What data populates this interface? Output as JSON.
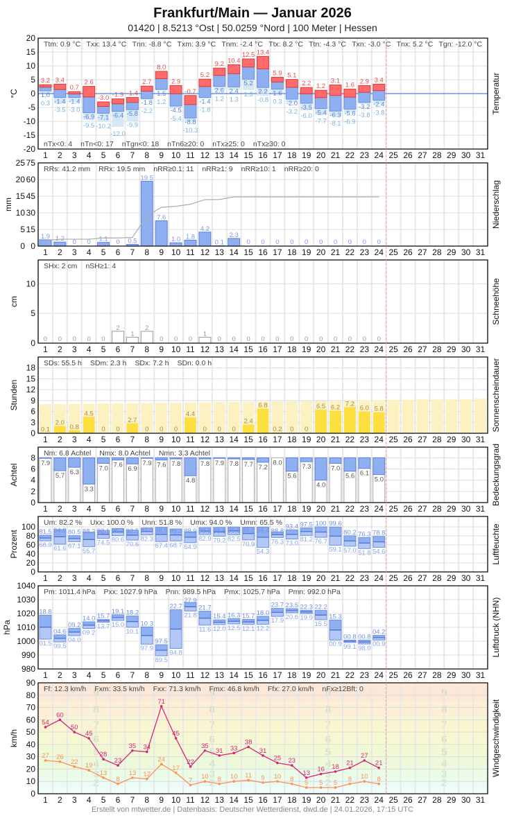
{
  "header": {
    "title": "Frankfurt/Main  —  Januar 2026",
    "subtitle": "01420  |  8.5213 °Ost  |  50.0259 °Nord  |  100 Meter  |  Hessen"
  },
  "footer": "Erstellt von mtwetter.de | Datenbasis: Deutscher Wetterdienst, dwd.de | 24.01.2026, 17:15 UTC",
  "colors": {
    "tmax": "#ff6b6b",
    "tmin": "#8fb0f0",
    "tground": "#d4e8f6",
    "precip": "#8fb0f0",
    "sun": "#fde040",
    "sun_possible": "#fcf1c0",
    "cloud": "#8fb0f0",
    "humidity": "#a8c0f4",
    "pressure": "#a8c0f4",
    "gust": "#d6247a",
    "wind_mean": "#ff9055",
    "today_line": "#f2a0a0"
  },
  "days": [
    "1",
    "2",
    "3",
    "4",
    "5",
    "6",
    "7",
    "8",
    "9",
    "10",
    "11",
    "12",
    "13",
    "14",
    "15",
    "16",
    "17",
    "18",
    "19",
    "20",
    "21",
    "22",
    "23",
    "24",
    "25",
    "26",
    "27",
    "28",
    "29",
    "30",
    "31"
  ],
  "chart_data": [
    {
      "type": "bar",
      "name": "temperature",
      "side_label": "Temperatur",
      "ylabel": "°C",
      "ylim": [
        -20,
        20
      ],
      "ticks": [
        "20",
        "15",
        "10",
        "5",
        "0",
        "-5",
        "-10",
        "-15",
        "-20"
      ],
      "stats": [
        "Ttm: 0.9 °C",
        "Txx: 13.4 °C",
        "Tnn: -8.8 °C",
        "Txm: 3.9 °C",
        "Tnm: -2.4 °C",
        "Ttx: 8.2 °C",
        "Ttn: -4.3 °C",
        "Txn: -3.0 °C",
        "Tnx: 5.2 °C",
        "Tgn: -12.0 °C"
      ],
      "stats_bottom": [
        "nTx<0: 4",
        "nTn<0: 17",
        "nTgn<0: 18",
        "nTn6≥20: 0",
        "nTx≥25: 0",
        "nTx≥30: 0"
      ],
      "tmax": [
        "3.2",
        "3.4",
        "0.7",
        "2.6",
        "-3.0",
        "-1.9",
        "-1.4",
        "2.7",
        "8.0",
        "2.9",
        "-0.7",
        "5.2",
        "9.2",
        "10.4",
        "12.5",
        "13.4",
        "5.9",
        "5.1",
        "2.2",
        "1.2",
        "3.1",
        "1.6",
        "2.9",
        "3.4"
      ],
      "tmin": [
        "1.0",
        "-1.4",
        "-1.4",
        "-6.9",
        "-7.1",
        "-6.4",
        "-5.8",
        "-1.8",
        "1.5",
        "-4.5",
        "-8.8",
        "-1.4",
        "2.6",
        "2.4",
        "5.2",
        "2.2",
        "1.6",
        "-2.0",
        "-3.5",
        "-5.4",
        "-6.3",
        "-5.6",
        "-3.2",
        "-2.4"
      ],
      "tground": [
        "0.3",
        "-3.5",
        "-3.0",
        "-9.5",
        "-10.2",
        "-12.0",
        "-9.9",
        "-2.2",
        "1.2",
        "-5.4",
        "-10.3",
        "-1.8",
        "1.2",
        "1.3",
        "1.3",
        "-0.8",
        "0.3",
        "-3.2",
        "-6.0",
        "-7.7",
        "-8.1",
        "-6.9",
        "-3.8",
        "-3.8"
      ]
    },
    {
      "type": "bar",
      "name": "precipitation",
      "side_label": "Niederschlag",
      "ylabel": "mm",
      "ylim": [
        0,
        25
      ],
      "y2lim": [
        0,
        75
      ],
      "ticks": [
        "25",
        "20",
        "15",
        "10",
        "5",
        "0"
      ],
      "ticks2": [
        "75",
        "60",
        "45",
        "30",
        "15",
        "0"
      ],
      "stats": [
        "RRs: 41.2 mm",
        "RRx: 19.5 mm",
        "nRR≥0.1: 11",
        "nRR≥1: 9",
        "nRR≥10: 1",
        "nRR≥20: 0"
      ],
      "values": [
        "1.9",
        "1.2",
        "0",
        "0",
        "1.1",
        "0",
        "0.5",
        "19.5",
        "7.6",
        "1.0",
        "1.8",
        "4.2",
        "0.1",
        "2.3",
        "0",
        "0",
        "0",
        "0",
        "0",
        "0",
        "0",
        "0",
        "0",
        "0"
      ]
    },
    {
      "type": "bar",
      "name": "snow",
      "side_label": "Schneehöhe",
      "ylabel": "cm",
      "ylim": [
        0,
        14
      ],
      "ticks": [
        "10",
        "5",
        "0"
      ],
      "stats": [
        "SHx: 2 cm",
        "nSH≥1: 4"
      ],
      "values": [
        "0",
        "0",
        "0",
        "0",
        "0",
        "2",
        "1",
        "2",
        "0",
        "0",
        "0",
        "1",
        "0",
        "0",
        "0",
        "0",
        "0",
        "0",
        "0",
        "0",
        "0",
        "0",
        "0",
        "0"
      ]
    },
    {
      "type": "bar",
      "name": "sunshine",
      "side_label": "Sonnenscheindauer",
      "ylabel": "Stunden",
      "ylim": [
        0,
        21
      ],
      "ticks": [
        "18",
        "15",
        "12",
        "9",
        "6",
        "3",
        "0"
      ],
      "stats": [
        "SDs: 55.5 h",
        "SDm: 2.3 h",
        "SDx: 7.2 h",
        "SDn: 0.0 h"
      ],
      "values": [
        "0.1",
        "2.0",
        "0.8",
        "4.5",
        "0",
        "0",
        "2.7",
        "0",
        "0",
        "0",
        "4.4",
        "0",
        "0",
        "0",
        "2.4",
        "6.8",
        "0.2",
        "0",
        "0",
        "6.5",
        "6.2",
        "7.2",
        "6.0",
        "5.8"
      ],
      "possible": [
        8.0,
        8.0,
        8.1,
        8.1,
        8.2,
        8.2,
        8.3,
        8.3,
        8.4,
        8.4,
        8.5,
        8.5,
        8.6,
        8.6,
        8.7,
        8.7,
        8.8,
        8.8,
        8.9,
        8.9,
        9.0,
        9.0,
        9.1,
        9.1,
        9.2,
        9.2,
        9.3,
        9.3,
        9.4,
        9.4,
        9.5
      ]
    },
    {
      "type": "bar",
      "name": "cloud_cover",
      "side_label": "Bedeckungsgrad",
      "ylabel": "Achtel",
      "ylim": [
        0,
        9.9
      ],
      "ticks": [
        "8",
        "6",
        "4",
        "2",
        "0"
      ],
      "stats": [
        "Nm: 6.8 Achtel",
        "Nmx: 8.0 Achtel",
        "Nmn: 3.3 Achtel"
      ],
      "values": [
        "7.9",
        "5.7",
        "6.3",
        "3.3",
        "7.0",
        "7.6",
        "6.9",
        "7.9",
        "7.6",
        "7.8",
        "4.8",
        "7.8",
        "7.9",
        "7.8",
        "7.7",
        "7.2",
        "8.0",
        "5.6",
        "7.3",
        "4.0",
        "7.0",
        "5.6",
        "6.1",
        "5.0"
      ]
    },
    {
      "type": "bar",
      "name": "humidity",
      "side_label": "Luftfeuchte",
      "ylabel": "Prozent",
      "ylim": [
        0,
        123
      ],
      "ticks": [
        "100",
        "80",
        "60",
        "40",
        "20",
        "0"
      ],
      "stats": [
        "Um: 82.2 %",
        "Uxx: 100.0 %",
        "Unn: 51.8 %",
        "Umx: 94.0 %",
        "Umn: 65.5 %"
      ],
      "max": [
        "81.5",
        "94.0",
        "80.5",
        "88.2",
        "92.1",
        "96.4",
        "92.5",
        "97.3",
        "98.9",
        "95.3",
        "88.9",
        "98.2",
        "98.6",
        "99.5",
        "99.0",
        "99.4",
        "88.8",
        "93.4",
        "97.5",
        "100",
        "99.6",
        "80.2",
        "76.3",
        "78.8"
      ],
      "min": [
        "68.9",
        "61.6",
        "67.1",
        "55.7",
        "74.5",
        "80.6",
        "70.6",
        "82.3",
        "67.4",
        "68.7",
        "64.9",
        "82.9",
        "79.2",
        "82.5",
        "70.9",
        "54.3",
        "76.3",
        "73.0",
        "81.2",
        "76.7",
        "59.1",
        "57.0",
        "51.8",
        "54.6"
      ]
    },
    {
      "type": "bar",
      "name": "pressure",
      "side_label": "Luftdruck (NHN)",
      "ylabel": "hPa",
      "ylim": [
        980,
        1040
      ],
      "ticks": [
        "1040",
        "1030",
        "1020",
        "1010",
        "1000",
        "990",
        "980"
      ],
      "stats": [
        "Pm: 1011.4 hPa",
        "Pxx: 1027.9 hPa",
        "Pnn: 989.5 hPa",
        "Pmx: 1025.7 hPa",
        "Pmn: 992.0 hPa"
      ],
      "max_labels": [
        "18.8",
        "04.6",
        "09.2",
        "14.0",
        "15.7",
        "19.1",
        "18.2",
        "10.3",
        "97.5",
        "22.7",
        "27.9",
        "21.7",
        "15.4",
        "16.3",
        "15.7",
        "18.0",
        "23.7",
        "23.5",
        "22.3",
        "22.2",
        "15.3",
        "00.8",
        "00.8",
        "04.2"
      ],
      "min_labels": [
        "01.5",
        "99.5",
        "04.0",
        "09.2",
        "13.7",
        "15.0",
        "10.1",
        "97.9",
        "89.5",
        "94.8",
        "21.8",
        "11.6",
        "12.0",
        "12.5",
        "12.1",
        "12.2",
        "17.9",
        "20.6",
        "19.9",
        "15.5",
        "00.9",
        "99.1",
        "98.0",
        "00.9"
      ],
      "max": [
        1018.8,
        1004.6,
        1009.2,
        1014.0,
        1015.7,
        1019.1,
        1018.2,
        1010.3,
        997.5,
        1022.7,
        1027.9,
        1021.7,
        1015.4,
        1016.3,
        1015.7,
        1018.0,
        1023.7,
        1023.5,
        1022.3,
        1022.2,
        1015.3,
        1000.8,
        1000.8,
        1004.2
      ],
      "min": [
        1001.5,
        999.5,
        1004.0,
        1009.2,
        1013.7,
        1015.0,
        1010.1,
        997.9,
        989.5,
        994.8,
        1021.8,
        1011.6,
        1012.0,
        1012.5,
        1012.1,
        1012.2,
        1017.9,
        1020.6,
        1019.9,
        1015.5,
        1000.9,
        999.1,
        998.0,
        1000.9
      ]
    },
    {
      "type": "line",
      "name": "wind",
      "side_label": "Windgeschwindigkeit",
      "ylabel": "km/h",
      "ylim": [
        0,
        90
      ],
      "ticks": [
        "90",
        "80",
        "70",
        "60",
        "50",
        "40",
        "30",
        "20",
        "10",
        "0"
      ],
      "stats": [
        "Ff: 12.3 km/h",
        "Fxm: 33.5 km/h",
        "Fxx: 71.3 km/h",
        "Fmx: 46.8 km/h",
        "Ffx: 27.0 km/h",
        "nFx≥12Bft: 0"
      ],
      "beaufort_labels": [
        "2",
        "3",
        "4",
        "5",
        "6",
        "7",
        "8",
        "9"
      ],
      "gust": [
        "54",
        "60",
        "50",
        "45",
        "28",
        "23",
        "35",
        "34",
        "71",
        "45",
        "22",
        "35",
        "31",
        "33",
        "38",
        "31",
        "25",
        "23",
        "13",
        "16",
        "18",
        "21",
        "27",
        "21"
      ],
      "mean": [
        "27",
        "26",
        "22",
        "19",
        "13",
        "8",
        "13",
        "12",
        "24",
        "17",
        "7",
        "10",
        "8",
        "10",
        "11",
        "9",
        "10",
        "8",
        "5",
        "5",
        "5",
        "8",
        "10",
        "8"
      ]
    }
  ]
}
